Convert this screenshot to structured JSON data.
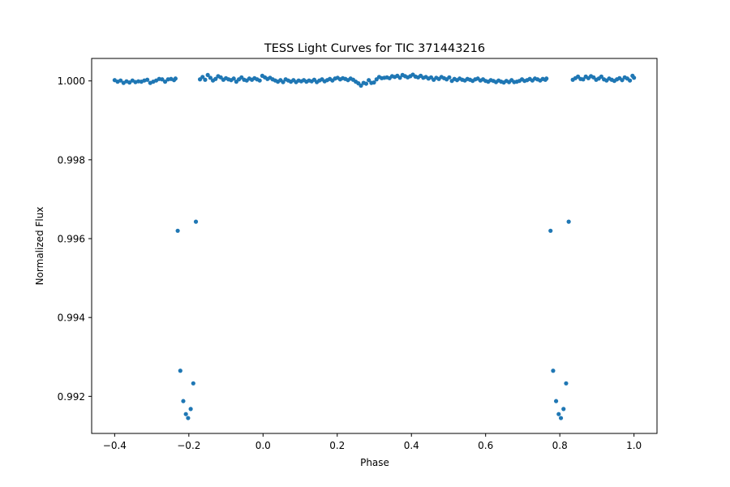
{
  "chart_data": {
    "type": "scatter",
    "title": "TESS Light Curves for TIC 371443216",
    "xlabel": "Phase",
    "ylabel": "Normalized Flux",
    "xlim": [
      -0.462,
      1.062
    ],
    "ylim": [
      0.99106,
      1.00057
    ],
    "xticks": [
      -0.4,
      -0.2,
      0.0,
      0.2,
      0.4,
      0.6,
      0.8,
      1.0
    ],
    "xtick_labels": [
      "−0.4",
      "−0.2",
      "0.0",
      "0.2",
      "0.4",
      "0.6",
      "0.8",
      "1.0"
    ],
    "yticks": [
      0.992,
      0.994,
      0.996,
      0.998,
      1.0
    ],
    "ytick_labels": [
      "0.992",
      "0.994",
      "0.996",
      "0.998",
      "1.000"
    ],
    "grid": false,
    "legend": "none",
    "marker_color": "#1f77b4",
    "x": [
      -0.4,
      -0.392,
      -0.384,
      -0.376,
      -0.368,
      -0.36,
      -0.352,
      -0.344,
      -0.336,
      -0.328,
      -0.32,
      -0.312,
      -0.304,
      -0.296,
      -0.288,
      -0.28,
      -0.272,
      -0.264,
      -0.256,
      -0.248,
      -0.24,
      -0.236,
      -0.23,
      -0.223,
      -0.215,
      -0.208,
      -0.202,
      -0.195,
      -0.188,
      -0.181,
      -0.17,
      -0.163,
      -0.156,
      -0.149,
      -0.142,
      -0.135,
      -0.128,
      -0.121,
      -0.114,
      -0.107,
      -0.1,
      -0.093,
      -0.086,
      -0.079,
      -0.072,
      -0.065,
      -0.058,
      -0.051,
      -0.044,
      -0.037,
      -0.03,
      -0.023,
      -0.016,
      -0.009,
      -0.002,
      0.005,
      0.012,
      0.019,
      0.026,
      0.033,
      0.04,
      0.047,
      0.054,
      0.061,
      0.068,
      0.075,
      0.082,
      0.089,
      0.096,
      0.103,
      0.11,
      0.117,
      0.124,
      0.131,
      0.138,
      0.145,
      0.152,
      0.159,
      0.166,
      0.173,
      0.18,
      0.187,
      0.194,
      0.201,
      0.208,
      0.215,
      0.222,
      0.229,
      0.236,
      0.243,
      0.25,
      0.257,
      0.264,
      0.271,
      0.278,
      0.285,
      0.292,
      0.299,
      0.306,
      0.313,
      0.32,
      0.327,
      0.334,
      0.341,
      0.348,
      0.355,
      0.362,
      0.369,
      0.376,
      0.383,
      0.39,
      0.397,
      0.404,
      0.411,
      0.418,
      0.425,
      0.432,
      0.439,
      0.446,
      0.453,
      0.46,
      0.467,
      0.474,
      0.481,
      0.488,
      0.495,
      0.502,
      0.509,
      0.516,
      0.523,
      0.53,
      0.537,
      0.544,
      0.551,
      0.558,
      0.565,
      0.572,
      0.579,
      0.586,
      0.593,
      0.6,
      0.607,
      0.614,
      0.621,
      0.628,
      0.635,
      0.642,
      0.649,
      0.656,
      0.663,
      0.67,
      0.677,
      0.684,
      0.691,
      0.698,
      0.705,
      0.712,
      0.719,
      0.726,
      0.733,
      0.74,
      0.747,
      0.754,
      0.761,
      0.764,
      0.775,
      0.782,
      0.79,
      0.797,
      0.803,
      0.81,
      0.817,
      0.824,
      0.835,
      0.842,
      0.849,
      0.856,
      0.863,
      0.87,
      0.877,
      0.884,
      0.891,
      0.898,
      0.905,
      0.912,
      0.919,
      0.926,
      0.933,
      0.94,
      0.947,
      0.954,
      0.961,
      0.968,
      0.975,
      0.982,
      0.989,
      0.996,
      1.0
    ],
    "y": [
      1.00002,
      0.99998,
      1.00001,
      0.99995,
      0.99999,
      0.99996,
      1.00001,
      0.99997,
      0.99999,
      0.99998,
      1.00001,
      1.00003,
      0.99995,
      0.99998,
      1.00001,
      1.00005,
      1.00004,
      0.99998,
      1.00004,
      1.00005,
      1.00002,
      1.00006,
      0.9962,
      0.99265,
      0.99188,
      0.99155,
      0.99145,
      0.99168,
      0.99233,
      0.99643,
      1.00004,
      1.0001,
      1.00003,
      1.00015,
      1.00008,
      1.00001,
      1.00005,
      1.00012,
      1.00009,
      1.00003,
      1.00007,
      1.00004,
      1.00002,
      1.00006,
      0.99998,
      1.00004,
      1.00009,
      1.00003,
      1.00001,
      1.00006,
      1.00003,
      1.00007,
      1.00004,
      1.00001,
      1.00013,
      1.00009,
      1.00005,
      1.00008,
      1.00004,
      1.00001,
      0.99998,
      1.00002,
      0.99997,
      1.00004,
      1.00001,
      0.99998,
      1.00002,
      0.99997,
      1.00001,
      0.99999,
      1.00002,
      0.99998,
      1.00001,
      0.99999,
      1.00003,
      0.99997,
      1.00001,
      1.00004,
      0.99999,
      1.00002,
      1.00005,
      1.00001,
      1.00006,
      1.00008,
      1.00004,
      1.00007,
      1.00005,
      1.00002,
      1.00006,
      1.00003,
      0.99998,
      0.99994,
      0.99988,
      0.99995,
      0.99993,
      1.00002,
      0.99995,
      0.99996,
      1.00004,
      1.0001,
      1.00007,
      1.00008,
      1.00009,
      1.00007,
      1.00012,
      1.0001,
      1.00013,
      1.00008,
      1.00015,
      1.00012,
      1.00009,
      1.00012,
      1.00016,
      1.00011,
      1.00009,
      1.00013,
      1.00008,
      1.0001,
      1.00006,
      1.00009,
      1.00003,
      1.00008,
      1.00005,
      1.0001,
      1.00007,
      1.00004,
      1.00009,
      1.0,
      1.00005,
      1.00002,
      1.00006,
      1.00003,
      1.00001,
      1.00005,
      1.00003,
      1.0,
      1.00004,
      1.00006,
      1.00001,
      1.00004,
      1.0,
      0.99998,
      1.00002,
      1.0,
      0.99997,
      1.00001,
      0.99998,
      0.99996,
      1.0,
      0.99997,
      1.00002,
      0.99997,
      0.99998,
      1.0,
      1.00004,
      1.0,
      1.00002,
      1.00005,
      1.00001,
      1.00006,
      1.00004,
      1.00001,
      1.00005,
      1.00003,
      1.00006,
      0.9962,
      0.99265,
      0.99188,
      0.99155,
      0.99145,
      0.99168,
      0.99233,
      0.99643,
      1.00003,
      1.00007,
      1.00011,
      1.00005,
      1.00004,
      1.00011,
      1.00007,
      1.00012,
      1.00009,
      1.00003,
      1.00006,
      1.00011,
      1.00004,
      1.00001,
      1.00006,
      1.00003,
      1.0,
      1.00004,
      1.00007,
      1.00002,
      1.00009,
      1.00006,
      1.00001,
      1.00013,
      1.00008
    ]
  }
}
